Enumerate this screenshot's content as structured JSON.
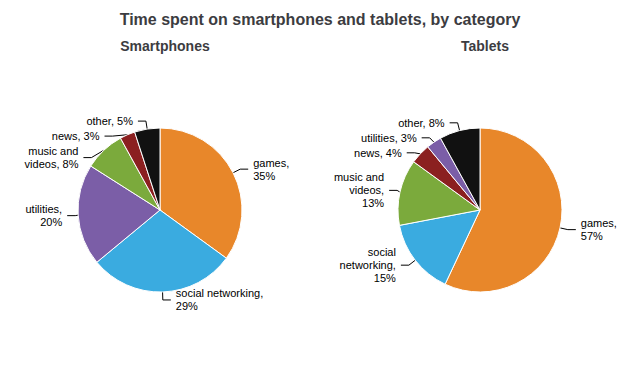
{
  "chart_data": {
    "type": "pie",
    "title": "Time spent on smartphones and tablets, by category",
    "series": [
      {
        "name": "Smartphones",
        "values": [
          35,
          29,
          20,
          8,
          3,
          5
        ],
        "value_labels": [
          "games,\n35%",
          "social networking,\n29%",
          "utilities,\n20%",
          "music and\nvideos, 8%",
          "news, 3%",
          "other, 5%"
        ],
        "colors": [
          "#E8872A",
          "#3AABE0",
          "#7B5EA7",
          "#7BAA3C",
          "#8B2020",
          "#111111"
        ]
      },
      {
        "name": "Tablets",
        "values": [
          57,
          15,
          13,
          4,
          3,
          8
        ],
        "value_labels": [
          "games,\n57%",
          "social\nnetworking,\n15%",
          "music and\nvideos,\n13%",
          "news, 4%",
          "utilities, 3%",
          "other, 8%"
        ],
        "colors": [
          "#E8872A",
          "#3AABE0",
          "#7BAA3C",
          "#8B2020",
          "#7B5EA7",
          "#111111"
        ]
      }
    ]
  }
}
